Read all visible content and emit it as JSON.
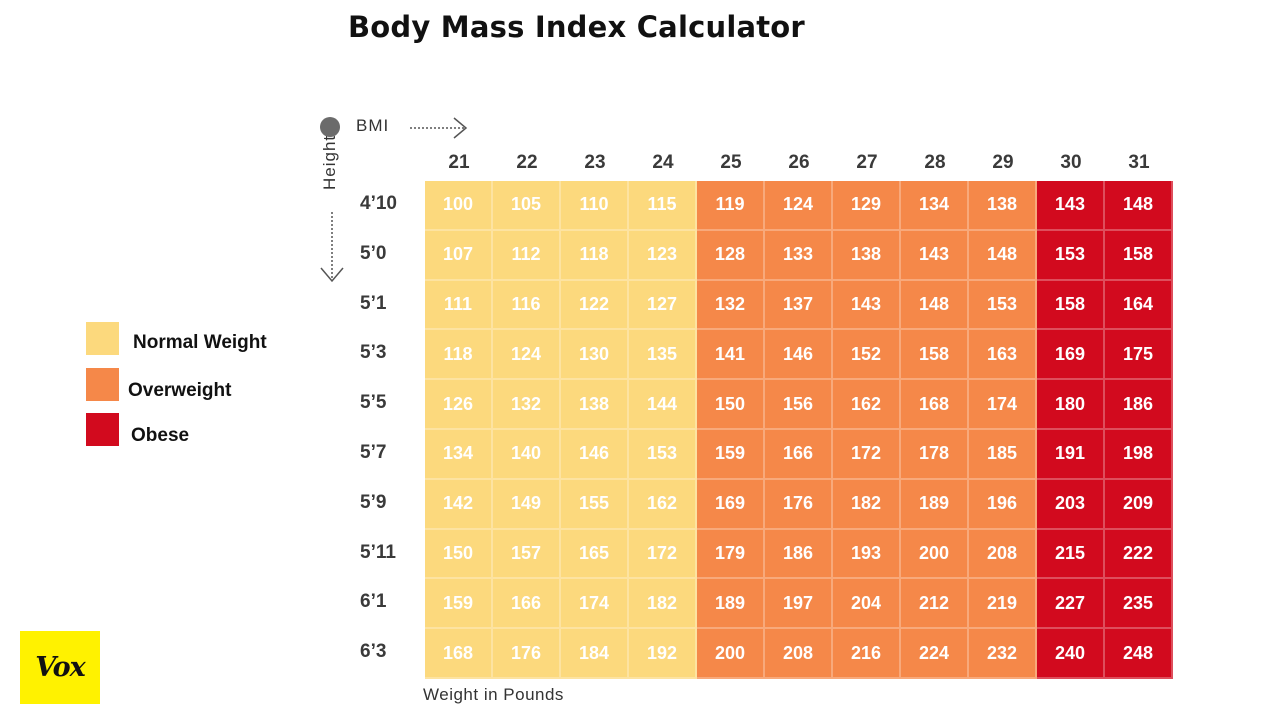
{
  "title": "Body Mass Index Calculator",
  "bmi_axis_label": "BMI",
  "height_axis_label": "Height",
  "xlabel": "Weight in Pounds",
  "logo": "Vox",
  "legend": [
    {
      "label": "Normal Weight",
      "color": "#fcd97d"
    },
    {
      "label": "Overweight",
      "color": "#f58849"
    },
    {
      "label": "Obese",
      "color": "#d20a1e"
    }
  ],
  "colors": {
    "normal": "#fcd97d",
    "overweight": "#f58849",
    "obese": "#d20a1e",
    "logo_bg": "#fff200"
  },
  "chart_data": {
    "type": "table",
    "title": "Body Mass Index Calculator",
    "xlabel": "Weight in Pounds",
    "columns": [
      "21",
      "22",
      "23",
      "24",
      "25",
      "26",
      "27",
      "28",
      "29",
      "30",
      "31"
    ],
    "column_category": [
      "normal",
      "normal",
      "normal",
      "normal",
      "overweight",
      "overweight",
      "overweight",
      "overweight",
      "overweight",
      "obese",
      "obese"
    ],
    "rows": [
      "4’10",
      "5’0",
      "5’1",
      "5’3",
      "5’5",
      "5’7",
      "5’9",
      "5’11",
      "6’1",
      "6’3"
    ],
    "values": [
      [
        100,
        105,
        110,
        115,
        119,
        124,
        129,
        134,
        138,
        143,
        148
      ],
      [
        107,
        112,
        118,
        123,
        128,
        133,
        138,
        143,
        148,
        153,
        158
      ],
      [
        111,
        116,
        122,
        127,
        132,
        137,
        143,
        148,
        153,
        158,
        164
      ],
      [
        118,
        124,
        130,
        135,
        141,
        146,
        152,
        158,
        163,
        169,
        175
      ],
      [
        126,
        132,
        138,
        144,
        150,
        156,
        162,
        168,
        174,
        180,
        186
      ],
      [
        134,
        140,
        146,
        153,
        159,
        166,
        172,
        178,
        185,
        191,
        198
      ],
      [
        142,
        149,
        155,
        162,
        169,
        176,
        182,
        189,
        196,
        203,
        209
      ],
      [
        150,
        157,
        165,
        172,
        179,
        186,
        193,
        200,
        208,
        215,
        222
      ],
      [
        159,
        166,
        174,
        182,
        189,
        197,
        204,
        212,
        219,
        227,
        235
      ],
      [
        168,
        176,
        184,
        192,
        200,
        208,
        216,
        224,
        232,
        240,
        248
      ]
    ]
  }
}
